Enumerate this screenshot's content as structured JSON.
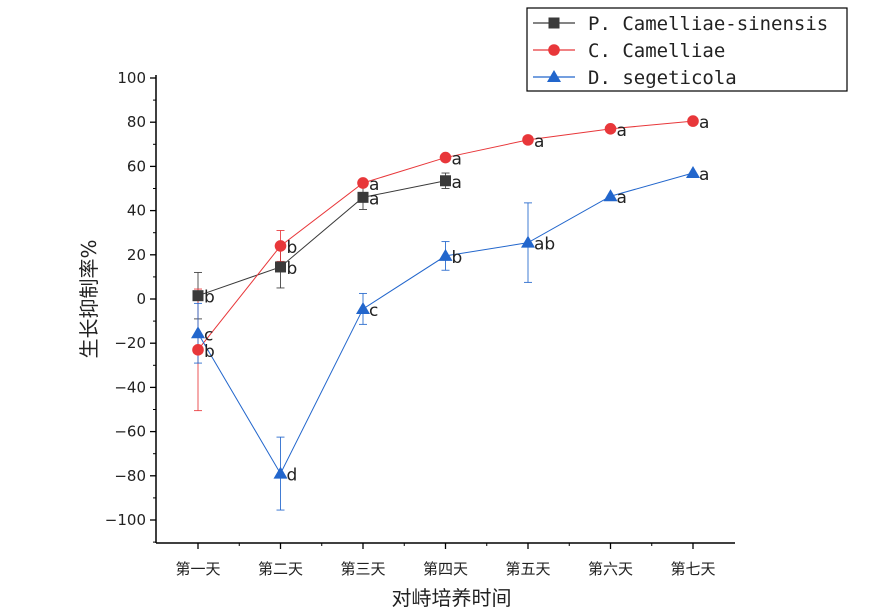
{
  "chart_data": {
    "type": "line",
    "title": "",
    "xlabel": "对峙培养时间",
    "ylabel": "生长抑制率%",
    "ylim": [
      -110,
      100
    ],
    "y_ticks": [
      -100,
      -80,
      -60,
      -40,
      -20,
      0,
      20,
      40,
      60,
      80,
      100
    ],
    "categories": [
      "第一天",
      "第二天",
      "第三天",
      "第四天",
      "第五天",
      "第六天",
      "第七天"
    ],
    "grid": false,
    "legend_position": "top-right",
    "series": [
      {
        "name": "P. Camelliae-sinensis",
        "color": "#3a3a3a",
        "marker": "square",
        "values": [
          1.5,
          14.5,
          46,
          53.5,
          null,
          null,
          null
        ],
        "errors": [
          10.5,
          9.5,
          5.5,
          3.5,
          null,
          null,
          null
        ],
        "labels": [
          "b",
          "b",
          "a",
          "a",
          null,
          null,
          null
        ]
      },
      {
        "name": "C. Camelliae",
        "color": "#e8373a",
        "marker": "circle",
        "values": [
          -23,
          24,
          52.5,
          64,
          72,
          77,
          80.5
        ],
        "errors": [
          27.5,
          7,
          0,
          0,
          0,
          0,
          0
        ],
        "labels": [
          "b",
          "b",
          "a",
          "a",
          "a",
          "a",
          "a"
        ]
      },
      {
        "name": "D. segeticola",
        "color": "#2266cc",
        "marker": "triangle",
        "values": [
          -15.5,
          -79,
          -4.5,
          19.5,
          25.5,
          46.5,
          57
        ],
        "errors": [
          13.5,
          16.5,
          7,
          6.5,
          18,
          0,
          0
        ],
        "labels": [
          "c",
          "d",
          "c",
          "b",
          "ab",
          "a",
          "a"
        ]
      }
    ]
  }
}
